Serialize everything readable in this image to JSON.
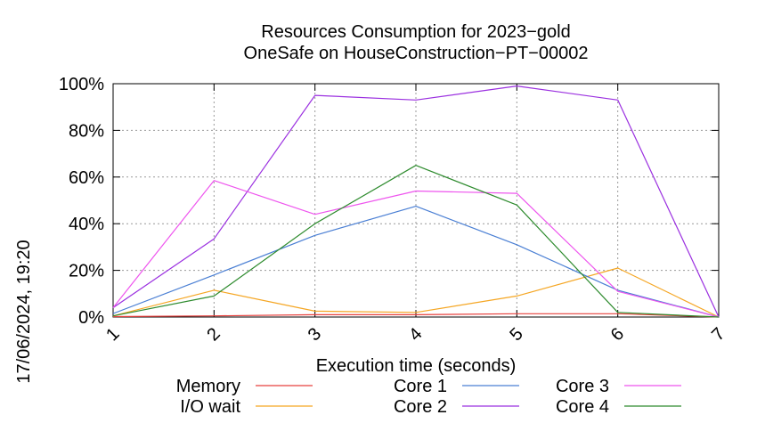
{
  "chart_data": {
    "type": "line",
    "title": "Resources Consumption for 2023−gold",
    "subtitle": "OneSafe on HouseConstruction−PT−00002",
    "xlabel": "Execution time (seconds)",
    "ylabel": "",
    "side_label": "17/06/2024, 19:20",
    "xlim": [
      1,
      7
    ],
    "ylim": [
      0,
      100
    ],
    "x_ticks": [
      "1",
      "2",
      "3",
      "4",
      "5",
      "6",
      "7"
    ],
    "y_ticks": [
      "0%",
      "20%",
      "40%",
      "60%",
      "80%",
      "100%"
    ],
    "grid": true,
    "legend_position": "bottom",
    "x": [
      1,
      2,
      3,
      4,
      5,
      6,
      7
    ],
    "series": [
      {
        "name": "Memory",
        "color": "#e8423f",
        "values": [
          0.2,
          0.5,
          1.0,
          1.0,
          1.4,
          1.4,
          0
        ]
      },
      {
        "name": "I/O wait",
        "color": "#f5a623",
        "values": [
          0.5,
          11.5,
          2.5,
          2.0,
          9.0,
          21.0,
          0
        ]
      },
      {
        "name": "Core 1",
        "color": "#4a7fd4",
        "values": [
          1.5,
          18.0,
          35.0,
          47.5,
          31.0,
          11.5,
          0
        ]
      },
      {
        "name": "Core 2",
        "color": "#9b30e0",
        "values": [
          4.0,
          33.5,
          95.0,
          93.0,
          99.0,
          93.0,
          0
        ]
      },
      {
        "name": "Core 3",
        "color": "#ee55ee",
        "values": [
          4.0,
          58.5,
          44.0,
          54.0,
          53.0,
          11.0,
          0
        ]
      },
      {
        "name": "Core 4",
        "color": "#2e8b2e",
        "values": [
          0.5,
          9.0,
          40.0,
          65.0,
          48.0,
          2.0,
          0
        ]
      }
    ]
  }
}
